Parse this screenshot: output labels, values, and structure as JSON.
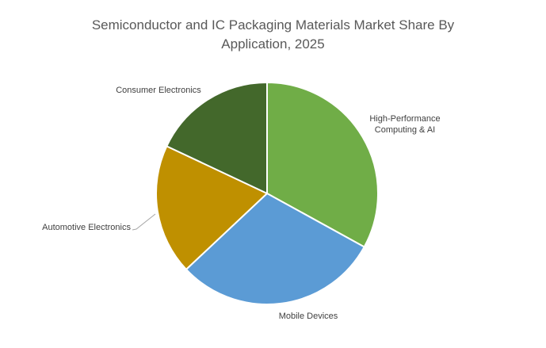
{
  "chart_data": {
    "type": "pie",
    "title_lines": [
      "Semiconductor and IC Packaging Materials Market Share By",
      "Application, 2025"
    ],
    "legend": "none",
    "slices": [
      {
        "label": "High-Performance Computing & AI",
        "value": 33,
        "color": "#70ad47"
      },
      {
        "label": "Mobile Devices",
        "value": 30,
        "color": "#5b9bd5"
      },
      {
        "label": "Automotive Electronics",
        "value": 19,
        "color": "#bf9000"
      },
      {
        "label": "Consumer Electronics",
        "value": 18,
        "color": "#43682b"
      }
    ]
  }
}
